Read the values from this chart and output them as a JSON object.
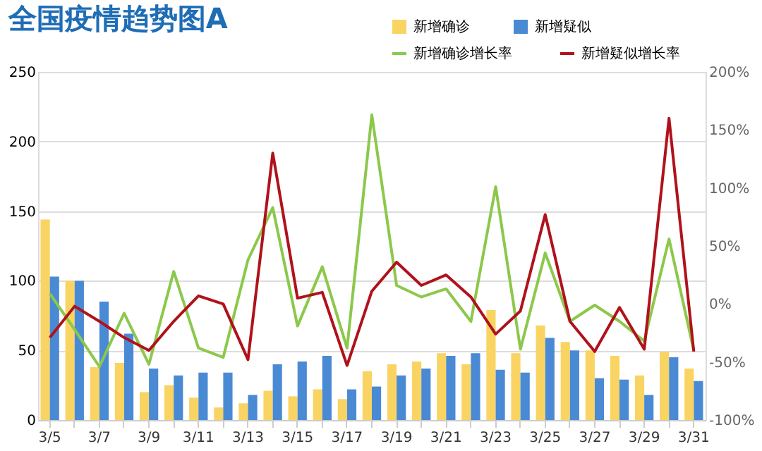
{
  "chart_data": {
    "type": "bar",
    "title": "全国疫情趋势图A",
    "categories": [
      "3/5",
      null,
      "3/7",
      null,
      "3/9",
      null,
      "3/11",
      null,
      "3/13",
      null,
      "3/15",
      null,
      "3/17",
      null,
      "3/19",
      null,
      "3/21",
      null,
      "3/23",
      null,
      "3/25",
      null,
      "3/27",
      null,
      "3/29",
      null,
      "3/31"
    ],
    "series": [
      {
        "name": "新增确诊",
        "color": "#f9d462",
        "type": "bar",
        "values": [
          144,
          100,
          38,
          41,
          20,
          25,
          16,
          9,
          12,
          21,
          17,
          22,
          15,
          35,
          40,
          42,
          48,
          40,
          79,
          48,
          68,
          56,
          50,
          46,
          32,
          49,
          37
        ]
      },
      {
        "name": "新增疑似",
        "color": "#4a8ad4",
        "type": "bar",
        "values": [
          103,
          100,
          85,
          62,
          37,
          32,
          34,
          34,
          18,
          40,
          42,
          46,
          22,
          24,
          32,
          37,
          46,
          48,
          36,
          34,
          59,
          50,
          30,
          29,
          18,
          45,
          28
        ]
      },
      {
        "name": "新增确诊增长率",
        "color": "#8cc84b",
        "type": "line",
        "axis": "y2",
        "values": [
          9,
          -22,
          -54,
          -8,
          -52,
          28,
          -38,
          -46,
          38,
          83,
          -19,
          32,
          -38,
          163,
          16,
          6,
          13,
          -15,
          101,
          -39,
          44,
          -15,
          -1,
          -15,
          -32,
          56,
          -40
        ]
      },
      {
        "name": "新增疑似增长率",
        "color": "#b0121b",
        "type": "line",
        "axis": "y2",
        "values": [
          -29,
          -2,
          -15,
          -29,
          -40,
          -15,
          7,
          0,
          -48,
          130,
          5,
          10,
          -53,
          11,
          36,
          16,
          25,
          6,
          -26,
          -6,
          77,
          -15,
          -41,
          -3,
          -39,
          160,
          -41
        ]
      }
    ],
    "ylim": [
      0,
      250
    ],
    "yticks": [
      0,
      50,
      100,
      150,
      200,
      250
    ],
    "y2lim": [
      -100,
      200
    ],
    "y2ticks": [
      {
        "value": -100,
        "label": "-100%"
      },
      {
        "value": -50,
        "label": "-50%"
      },
      {
        "value": 0,
        "label": "0%"
      },
      {
        "value": 50,
        "label": "50%"
      },
      {
        "value": 100,
        "label": "100%"
      },
      {
        "value": 150,
        "label": "150%"
      },
      {
        "value": 200,
        "label": "200%"
      }
    ],
    "grid": "y",
    "legend": "top right",
    "marker": "none",
    "line_style": "solid"
  }
}
